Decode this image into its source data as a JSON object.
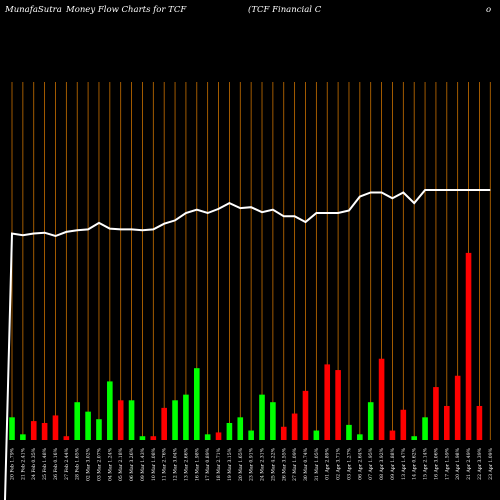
{
  "header": {
    "site": "MunafaSutra",
    "title": "Money Flow  Charts for TCF",
    "subtitle": "(TCF Financial C",
    "subtitle_extra": "o"
  },
  "chart_data": {
    "type": "bar",
    "title": "Money Flow  Charts for TCF",
    "categories": [
      "20 Feb 1.79%",
      "21 Feb 2.41%",
      "24 Feb 0.35%",
      "25 Feb 1.48%",
      "26 Feb 0.16%",
      "27 Feb 2.44%",
      "28 Feb 1.65%",
      "02 Mar 3.02%",
      "03 Mar 2.07%",
      "04 Mar 1.24%",
      "05 Mar 2.18%",
      "06 Mar 3.26%",
      "09 Mar 1.43%",
      "10 Mar 1.08%",
      "11 Mar 2.76%",
      "12 Mar 3.04%",
      "13 Mar 2.66%",
      "16 Mar 1.98%",
      "17 Mar 0.89%",
      "18 Mar 2.71%",
      "19 Mar 3.15%",
      "20 Mar 1.65%",
      "23 Mar 0.91%",
      "24 Mar 2.31%",
      "25 Mar 4.22%",
      "26 Mar 3.55%",
      "27 Mar 1.09%",
      "30 Mar 0.74%",
      "31 Mar 1.05%",
      "01 Apr 2.89%",
      "02 Apr 3.71%",
      "03 Apr 1.27%",
      "06 Apr 2.64%",
      "07 Apr 1.95%",
      "08 Apr 3.92%",
      "09 Apr 1.88%",
      "13 Apr 1.47%",
      "14 Apr 0.62%",
      "15 Apr 2.14%",
      "16 Apr 3.06%",
      "17 Apr 1.59%",
      "20 Apr 1.98%",
      "21 Apr 2.49%",
      "22 Apr 3.39%",
      "23 Apr 1.09%"
    ],
    "flow": [
      "in",
      "in",
      "out",
      "out",
      "out",
      "out",
      "in",
      "in",
      "in",
      "in",
      "out",
      "in",
      "in",
      "out",
      "out",
      "in",
      "in",
      "in",
      "in",
      "out",
      "in",
      "in",
      "in",
      "in",
      "in",
      "out",
      "out",
      "out",
      "in",
      "out",
      "out",
      "in",
      "in",
      "in",
      "out",
      "out",
      "out",
      "in",
      "in",
      "out",
      "out",
      "out",
      "out",
      "out",
      "out"
    ],
    "volume": [
      12,
      3,
      10,
      9,
      13,
      2,
      20,
      15,
      11,
      31,
      21,
      21,
      2,
      2,
      17,
      21,
      24,
      38,
      3,
      4,
      9,
      12,
      5,
      24,
      20,
      7,
      14,
      26,
      5,
      40,
      37,
      8,
      3,
      20,
      43,
      5,
      16,
      2,
      12,
      28,
      18,
      34,
      99,
      18,
      0
    ],
    "price": [
      51.5,
      51.3,
      51.5,
      51.6,
      51.2,
      51.7,
      51.9,
      52.0,
      52.8,
      52.1,
      52.0,
      52.0,
      51.9,
      52.0,
      52.7,
      53.1,
      54.0,
      54.4,
      54.0,
      54.5,
      55.2,
      54.6,
      54.7,
      54.1,
      54.4,
      53.6,
      53.6,
      52.9,
      54.0,
      54.0,
      54.0,
      54.3,
      56.0,
      56.5,
      56.5,
      55.8,
      56.5,
      55.2,
      56.8,
      56.8,
      56.8,
      56.8,
      56.8,
      56.8,
      56.8
    ],
    "colors": {
      "in": "#00ff00",
      "out": "#ff0000",
      "price": "#ffffff",
      "grid": "#c87000"
    },
    "grid": true
  }
}
